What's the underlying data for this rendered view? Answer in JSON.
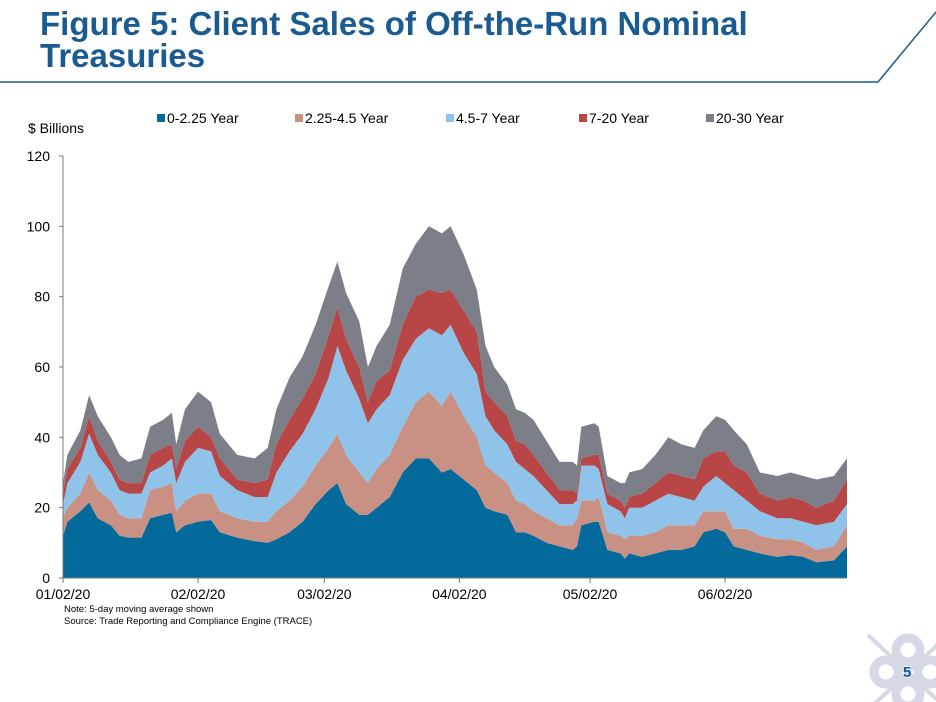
{
  "slide": {
    "title": "Figure 5: Client Sales of Off-the-Run Nominal Treasuries",
    "note": "Note: 5-day moving average shown",
    "source": "Source: Trade Reporting and Compliance Engine (TRACE)",
    "page_number": "5",
    "title_color": "#1a5b91"
  },
  "chart_data": {
    "type": "area",
    "stacked": true,
    "title": "",
    "ylabel": "$ Billions",
    "xlabel": "",
    "ylim": [
      0,
      120
    ],
    "yticks": [
      0,
      20,
      40,
      60,
      80,
      100,
      120
    ],
    "xticks": [
      {
        "date": "2020-01-02",
        "label": "01/02/20"
      },
      {
        "date": "2020-02-02",
        "label": "02/02/20"
      },
      {
        "date": "2020-03-02",
        "label": "03/02/20"
      },
      {
        "date": "2020-04-02",
        "label": "04/02/20"
      },
      {
        "date": "2020-05-02",
        "label": "05/02/20"
      },
      {
        "date": "2020-06-02",
        "label": "06/02/20"
      }
    ],
    "xlim": [
      "2020-01-02",
      "2020-06-30"
    ],
    "grid": false,
    "legend": "top",
    "x": [
      "2020-01-02",
      "2020-01-03",
      "2020-01-06",
      "2020-01-08",
      "2020-01-10",
      "2020-01-13",
      "2020-01-15",
      "2020-01-17",
      "2020-01-20",
      "2020-01-22",
      "2020-01-25",
      "2020-01-27",
      "2020-01-28",
      "2020-01-30",
      "2020-02-02",
      "2020-02-05",
      "2020-02-07",
      "2020-02-11",
      "2020-02-15",
      "2020-02-18",
      "2020-02-20",
      "2020-02-23",
      "2020-02-26",
      "2020-02-29",
      "2020-03-03",
      "2020-03-05",
      "2020-03-07",
      "2020-03-10",
      "2020-03-12",
      "2020-03-14",
      "2020-03-17",
      "2020-03-20",
      "2020-03-23",
      "2020-03-26",
      "2020-03-29",
      "2020-03-31",
      "2020-04-03",
      "2020-04-06",
      "2020-04-08",
      "2020-04-10",
      "2020-04-13",
      "2020-04-15",
      "2020-04-17",
      "2020-04-19",
      "2020-04-22",
      "2020-04-25",
      "2020-04-28",
      "2020-04-29",
      "2020-04-30",
      "2020-05-03",
      "2020-05-04",
      "2020-05-06",
      "2020-05-09",
      "2020-05-10",
      "2020-05-11",
      "2020-05-14",
      "2020-05-17",
      "2020-05-20",
      "2020-05-23",
      "2020-05-26",
      "2020-05-28",
      "2020-05-31",
      "2020-06-02",
      "2020-06-04",
      "2020-06-07",
      "2020-06-10",
      "2020-06-14",
      "2020-06-17",
      "2020-06-20",
      "2020-06-23",
      "2020-06-27",
      "2020-06-30"
    ],
    "series": [
      {
        "name": "0-2.25 Year",
        "color": "#046a9c",
        "values": [
          12,
          16,
          19,
          21.5,
          17,
          15,
          12,
          11.5,
          11.5,
          17,
          18,
          18.5,
          13,
          15,
          16,
          16.5,
          13,
          11.5,
          10.5,
          10,
          11,
          13,
          16,
          21,
          25,
          27,
          21,
          18,
          18,
          20,
          23,
          30,
          34,
          34,
          30,
          31,
          28,
          25,
          20,
          19,
          18,
          13,
          13,
          12,
          10,
          9,
          8,
          9,
          15,
          16,
          16,
          8,
          7,
          5.5,
          7,
          6,
          7,
          8,
          8,
          9,
          13,
          14,
          13,
          9,
          8,
          7,
          6,
          6.5,
          6,
          4.5,
          5,
          9
        ]
      },
      {
        "name": "2.25-4.5 Year",
        "color": "#c89184",
        "values": [
          5,
          4,
          5,
          8.5,
          8,
          7,
          6,
          5.5,
          5.5,
          8,
          8,
          8.5,
          6,
          7,
          8,
          7.5,
          6,
          5.5,
          5.5,
          6,
          8,
          9,
          10,
          11,
          12,
          14,
          14,
          12,
          9,
          11,
          12,
          13,
          16,
          19,
          19,
          22,
          18,
          15,
          12,
          11,
          9,
          9,
          8,
          7,
          7,
          6,
          7,
          8,
          7,
          6,
          7,
          5,
          5,
          5.5,
          5,
          6,
          6,
          7,
          7,
          6,
          6,
          5,
          6,
          5,
          6,
          5,
          5,
          4.5,
          4,
          3.5,
          4,
          6
        ]
      },
      {
        "name": "4.5-7 Year",
        "color": "#90c3ea",
        "values": [
          4,
          7,
          9,
          11,
          10,
          8,
          7,
          7,
          7,
          5,
          6,
          7,
          8,
          11,
          13,
          12,
          10,
          8,
          7,
          7,
          11,
          14,
          15,
          16,
          20,
          25,
          24,
          21,
          17,
          17,
          17,
          19,
          18,
          18,
          20,
          19,
          18,
          18,
          14,
          12,
          11,
          11,
          10,
          10,
          8,
          6,
          6,
          5,
          10,
          10,
          8,
          8,
          7,
          6,
          8,
          8,
          9,
          9,
          8,
          7,
          7,
          10,
          8,
          11,
          8,
          7,
          6,
          6,
          6,
          7,
          7,
          6
        ]
      },
      {
        "name": "7-20 Year",
        "color": "#b84646",
        "values": [
          3,
          4,
          4,
          5,
          4,
          3,
          3,
          3,
          3,
          5,
          5,
          4,
          4,
          6,
          6,
          4,
          5,
          3,
          4,
          5,
          8,
          9,
          10,
          10,
          12,
          11,
          9,
          9,
          6,
          8,
          7,
          10,
          12,
          11,
          12,
          10,
          12,
          12,
          7,
          8,
          8,
          6,
          7,
          6,
          5,
          4,
          4,
          2,
          2,
          3,
          4,
          3,
          3,
          3,
          3,
          4,
          5,
          6,
          6,
          6,
          8,
          7,
          9,
          7,
          8,
          5,
          5,
          6,
          6,
          5,
          6,
          7
        ]
      },
      {
        "name": "20-30 Year",
        "color": "#7d7f88",
        "values": [
          3,
          4,
          5,
          6,
          7,
          7,
          7,
          6,
          7,
          8,
          8,
          9,
          7,
          9,
          10,
          10,
          7,
          7,
          7,
          9,
          10,
          12,
          12,
          14,
          14,
          13,
          13,
          13,
          10,
          10,
          13,
          16,
          15,
          18,
          17,
          18,
          16,
          12,
          13,
          10,
          9,
          9,
          9,
          10,
          9,
          8,
          8,
          8,
          9,
          9,
          8,
          5,
          5,
          7,
          7,
          7,
          8,
          10,
          9,
          9,
          8,
          10,
          9,
          10,
          8,
          6,
          7,
          7,
          7,
          8,
          7,
          6
        ]
      }
    ]
  }
}
